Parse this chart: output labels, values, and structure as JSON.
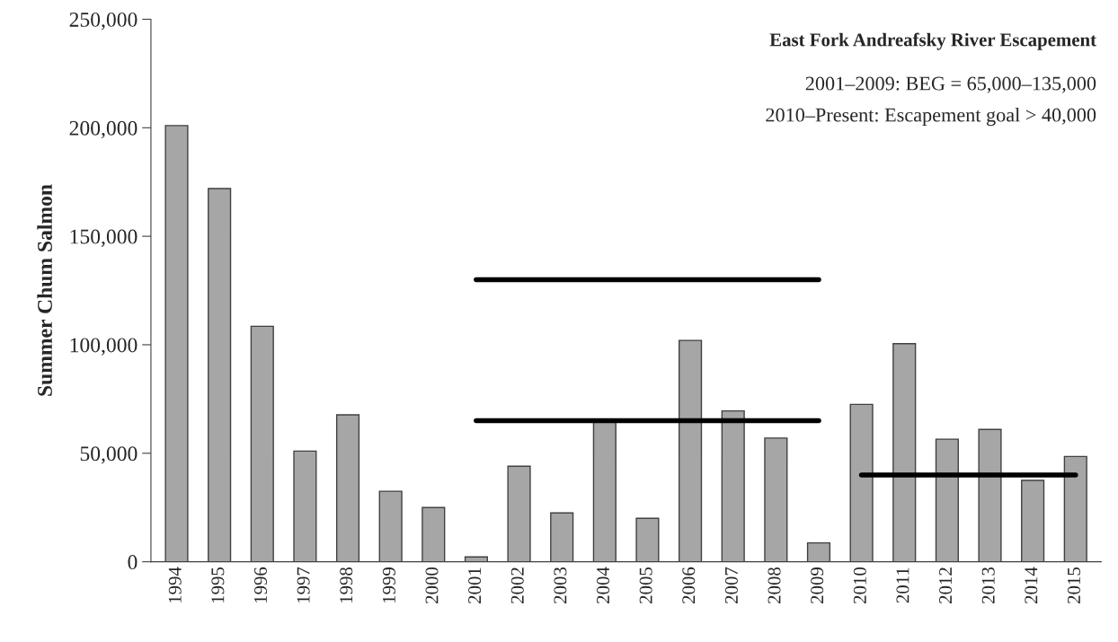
{
  "chart_data": {
    "type": "bar",
    "title": "East Fork Andreafsky River Escapement",
    "ylabel": "Summer Chum Salmon",
    "annotations": [
      "2001–2009: BEG = 65,000–135,000",
      "2010–Present: Escapement goal > 40,000"
    ],
    "categories": [
      "1994",
      "1995",
      "1996",
      "1997",
      "1998",
      "1999",
      "2000",
      "2001",
      "2002",
      "2003",
      "2004",
      "2005",
      "2006",
      "2007",
      "2008",
      "2009",
      "2010",
      "2011",
      "2012",
      "2013",
      "2014",
      "2015"
    ],
    "series": [
      {
        "color": "#a6a6a6",
        "values": [
          201000,
          172000,
          108500,
          51000,
          67700,
          32500,
          25000,
          2200,
          44000,
          22500,
          65500,
          20000,
          102000,
          69500,
          57000,
          8700,
          72500,
          100500,
          56500,
          61000,
          37500,
          48500
        ]
      },
      {
        "type": "line",
        "color": "#000000",
        "values": [
          null,
          null,
          null,
          null,
          null,
          null,
          null,
          130000,
          130000,
          130000,
          130000,
          130000,
          130000,
          130000,
          130000,
          130000,
          null,
          null,
          null,
          null,
          null,
          null
        ]
      },
      {
        "type": "line",
        "color": "#000000",
        "values": [
          null,
          null,
          null,
          null,
          null,
          null,
          null,
          65000,
          65000,
          65000,
          65000,
          65000,
          65000,
          65000,
          65000,
          65000,
          null,
          null,
          null,
          null,
          null,
          null
        ]
      },
      {
        "type": "line",
        "color": "#000000",
        "values": [
          null,
          null,
          null,
          null,
          null,
          null,
          null,
          null,
          null,
          null,
          null,
          null,
          null,
          null,
          null,
          null,
          40000,
          40000,
          40000,
          40000,
          40000,
          40000
        ]
      }
    ],
    "ylim": [
      0,
      250000
    ],
    "yticks": [
      {
        "value": 0,
        "label": "0"
      },
      {
        "value": 50000,
        "label": "50,000"
      },
      {
        "value": 100000,
        "label": "100,000"
      },
      {
        "value": 150000,
        "label": "150,000"
      },
      {
        "value": 200000,
        "label": "200,000"
      },
      {
        "value": 250000,
        "label": "250,000"
      }
    ],
    "grid": false,
    "legend": false
  }
}
